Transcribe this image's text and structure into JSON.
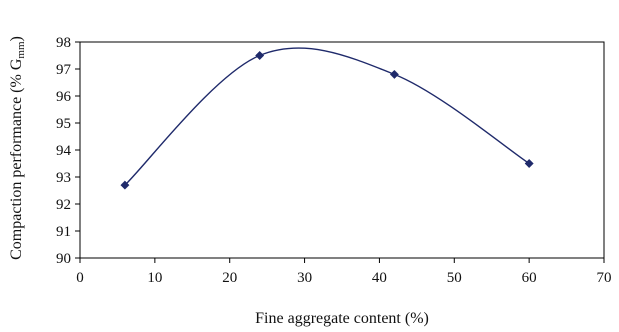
{
  "chart_data": {
    "type": "scatter",
    "smooth_line": true,
    "title": "",
    "xlabel": "Fine aggregate content (%)",
    "ylabel": {
      "prefix": "Compaction performance (% G",
      "subscript": "mm",
      "suffix": ")"
    },
    "xlim": [
      0,
      70
    ],
    "ylim": [
      90,
      98
    ],
    "x_ticks": [
      0,
      10,
      20,
      30,
      40,
      50,
      60,
      70
    ],
    "y_ticks": [
      90,
      91,
      92,
      93,
      94,
      95,
      96,
      97,
      98
    ],
    "grid": false,
    "legend": "none",
    "series": [
      {
        "x": [
          6,
          24,
          42,
          60
        ],
        "y": [
          92.7,
          97.5,
          96.8,
          93.5
        ],
        "marker": "diamond",
        "color": "#1f2a6b"
      }
    ]
  }
}
